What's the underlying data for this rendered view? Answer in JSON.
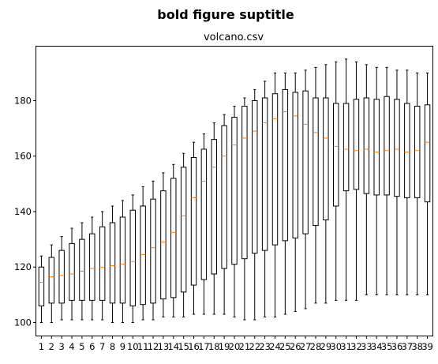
{
  "suptitle": "bold figure suptitle",
  "axes_title": "volcano.csv",
  "chart_data": {
    "type": "boxplot",
    "title": "volcano.csv",
    "suptitle": "bold figure suptitle",
    "xlabel": "",
    "ylabel": "",
    "categories": [
      "1",
      "2",
      "3",
      "4",
      "5",
      "6",
      "7",
      "8",
      "9",
      "10",
      "11",
      "12",
      "13",
      "14",
      "15",
      "16",
      "17",
      "18",
      "19",
      "20",
      "21",
      "22",
      "23",
      "24",
      "25",
      "26",
      "27",
      "28",
      "29",
      "30",
      "31",
      "32",
      "33",
      "34",
      "35",
      "36",
      "37",
      "38",
      "39"
    ],
    "yticks": [
      100,
      120,
      140,
      160,
      180
    ],
    "ylim": [
      95.3,
      199.5
    ],
    "grid": false,
    "box_color": "#000000",
    "median_color": "#ff7f0e",
    "boxes": [
      {
        "whislo": 100,
        "q1": 106,
        "med": 114.5,
        "q3": 120,
        "whishi": 124
      },
      {
        "whislo": 100,
        "q1": 107,
        "med": 116.5,
        "q3": 123.5,
        "whishi": 128
      },
      {
        "whislo": 101,
        "q1": 107,
        "med": 117,
        "q3": 126,
        "whishi": 131
      },
      {
        "whislo": 101,
        "q1": 108,
        "med": 117.5,
        "q3": 128.5,
        "whishi": 134
      },
      {
        "whislo": 101,
        "q1": 108,
        "med": 118.5,
        "q3": 130,
        "whishi": 136
      },
      {
        "whislo": 101,
        "q1": 108,
        "med": 119.5,
        "q3": 132,
        "whishi": 138
      },
      {
        "whislo": 101,
        "q1": 108,
        "med": 120,
        "q3": 134.5,
        "whishi": 140
      },
      {
        "whislo": 100,
        "q1": 107,
        "med": 120.5,
        "q3": 136,
        "whishi": 142
      },
      {
        "whislo": 100,
        "q1": 107,
        "med": 121,
        "q3": 138,
        "whishi": 144
      },
      {
        "whislo": 100,
        "q1": 106,
        "med": 122,
        "q3": 140.5,
        "whishi": 146
      },
      {
        "whislo": 101,
        "q1": 106.5,
        "med": 124.5,
        "q3": 142,
        "whishi": 149
      },
      {
        "whislo": 101,
        "q1": 107,
        "med": 127,
        "q3": 144.5,
        "whishi": 151
      },
      {
        "whislo": 102,
        "q1": 108.5,
        "med": 129,
        "q3": 147.5,
        "whishi": 154
      },
      {
        "whislo": 102,
        "q1": 109,
        "med": 132.5,
        "q3": 152,
        "whishi": 157
      },
      {
        "whislo": 102,
        "q1": 111,
        "med": 138.5,
        "q3": 156,
        "whishi": 161
      },
      {
        "whislo": 103,
        "q1": 113.5,
        "med": 145,
        "q3": 159.5,
        "whishi": 165
      },
      {
        "whislo": 103,
        "q1": 115.5,
        "med": 151,
        "q3": 162.5,
        "whishi": 168
      },
      {
        "whislo": 103,
        "q1": 117.5,
        "med": 156,
        "q3": 166,
        "whishi": 172
      },
      {
        "whislo": 103,
        "q1": 119.5,
        "med": 160,
        "q3": 171,
        "whishi": 175
      },
      {
        "whislo": 102,
        "q1": 121,
        "med": 164,
        "q3": 174,
        "whishi": 178
      },
      {
        "whislo": 101,
        "q1": 123,
        "med": 166.5,
        "q3": 178,
        "whishi": 181
      },
      {
        "whislo": 101,
        "q1": 125,
        "med": 169,
        "q3": 180,
        "whishi": 184
      },
      {
        "whislo": 102,
        "q1": 126,
        "med": 172,
        "q3": 181,
        "whishi": 187
      },
      {
        "whislo": 102,
        "q1": 128,
        "med": 173.5,
        "q3": 182.5,
        "whishi": 190
      },
      {
        "whislo": 103,
        "q1": 129.5,
        "med": 176,
        "q3": 184,
        "whishi": 190
      },
      {
        "whislo": 104,
        "q1": 130.5,
        "med": 174.5,
        "q3": 183,
        "whishi": 190
      },
      {
        "whislo": 105,
        "q1": 132,
        "med": 171.5,
        "q3": 183.5,
        "whishi": 191
      },
      {
        "whislo": 107,
        "q1": 135,
        "med": 168.5,
        "q3": 181,
        "whishi": 192
      },
      {
        "whislo": 107,
        "q1": 137,
        "med": 166.5,
        "q3": 181,
        "whishi": 193
      },
      {
        "whislo": 108,
        "q1": 142,
        "med": 163.5,
        "q3": 179,
        "whishi": 194
      },
      {
        "whislo": 108,
        "q1": 147.5,
        "med": 162.5,
        "q3": 179,
        "whishi": 195
      },
      {
        "whislo": 108,
        "q1": 148,
        "med": 162,
        "q3": 180.5,
        "whishi": 194
      },
      {
        "whislo": 110,
        "q1": 146.5,
        "med": 162.5,
        "q3": 181,
        "whishi": 193
      },
      {
        "whislo": 110,
        "q1": 146,
        "med": 161.5,
        "q3": 180.5,
        "whishi": 192
      },
      {
        "whislo": 110,
        "q1": 146,
        "med": 162,
        "q3": 181.5,
        "whishi": 192
      },
      {
        "whislo": 110,
        "q1": 145.5,
        "med": 162.5,
        "q3": 180.5,
        "whishi": 191
      },
      {
        "whislo": 110,
        "q1": 145,
        "med": 161.5,
        "q3": 179,
        "whishi": 191
      },
      {
        "whislo": 110,
        "q1": 145,
        "med": 162,
        "q3": 178,
        "whishi": 190
      },
      {
        "whislo": 110,
        "q1": 143.5,
        "med": 165,
        "q3": 178.5,
        "whishi": 190
      }
    ]
  }
}
